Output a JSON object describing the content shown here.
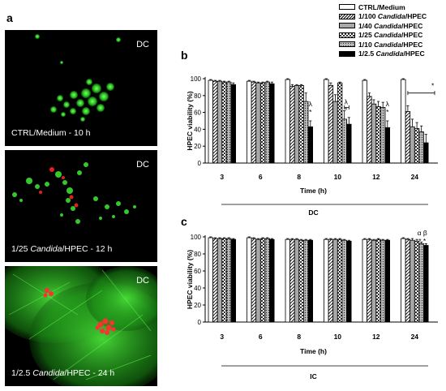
{
  "panels": {
    "a": "a",
    "b": "b",
    "c": "c"
  },
  "micrographs": [
    {
      "tag": "DC",
      "caption_pre": "CTRL/Medium - 10 h",
      "caption_italic": "",
      "caption_post": ""
    },
    {
      "tag": "DC",
      "caption_pre": "1/25 ",
      "caption_italic": "Candida",
      "caption_post": "/HPEC - 12 h"
    },
    {
      "tag": "DC",
      "caption_pre": "1/2.5 ",
      "caption_italic": "Candida",
      "caption_post": "/HPEC - 24 h"
    }
  ],
  "legend": [
    {
      "pre": "CTRL/Medium",
      "italic": "",
      "post": "",
      "pattern": "white"
    },
    {
      "pre": "1/100 ",
      "italic": "Candida",
      "post": "/HPEC",
      "pattern": "diag"
    },
    {
      "pre": "1/40 ",
      "italic": "Candida",
      "post": "/HPEC",
      "pattern": "gray"
    },
    {
      "pre": "1/25 ",
      "italic": "Candida",
      "post": "/HPEC",
      "pattern": "check"
    },
    {
      "pre": "1/10 ",
      "italic": "Candida",
      "post": "/HPEC",
      "pattern": "dots"
    },
    {
      "pre": "1/2.5 ",
      "italic": "Candida",
      "post": "/HPEC",
      "pattern": "black"
    }
  ],
  "chart_data": [
    {
      "type": "bar",
      "panel": "b",
      "ylabel": "HPEC viability (%)",
      "xlabel": "Time (h)",
      "group_label": "DC",
      "ylim": [
        0,
        100
      ],
      "yticks": [
        0,
        20,
        40,
        60,
        80,
        100
      ],
      "categories": [
        "3",
        "6",
        "8",
        "10",
        "12",
        "24"
      ],
      "series": [
        {
          "name": "CTRL/Medium",
          "values": [
            98,
            97,
            99,
            99,
            98,
            99
          ],
          "errors": [
            1,
            1,
            1,
            1,
            1,
            1
          ]
        },
        {
          "name": "1/100 Candida/HPEC",
          "values": [
            97,
            96,
            91,
            92,
            79,
            61
          ],
          "errors": [
            1,
            1,
            2,
            3,
            4,
            7
          ]
        },
        {
          "name": "1/40 Candida/HPEC",
          "values": [
            97,
            95,
            92,
            73,
            70,
            43
          ],
          "errors": [
            1,
            1,
            1,
            8,
            5,
            9
          ]
        },
        {
          "name": "1/25 Candida/HPEC",
          "values": [
            96,
            95,
            92,
            95,
            67,
            41
          ],
          "errors": [
            1,
            1,
            1,
            1,
            6,
            7
          ]
        },
        {
          "name": "1/10 Candida/HPEC",
          "values": [
            96,
            96,
            73,
            52,
            66,
            37
          ],
          "errors": [
            1,
            1,
            10,
            10,
            6,
            7
          ]
        },
        {
          "name": "1/2.5 Candida/HPEC",
          "values": [
            93,
            94,
            43,
            46,
            42,
            24
          ],
          "errors": [
            2,
            2,
            7,
            8,
            8,
            10
          ]
        }
      ],
      "annotations": [
        {
          "category": "8",
          "text": "λ"
        },
        {
          "category": "8",
          "text": "*"
        },
        {
          "category": "10",
          "text": "λ"
        },
        {
          "category": "10",
          "text": "*"
        },
        {
          "category": "12",
          "text": "λ"
        },
        {
          "category": "12",
          "text": "*"
        },
        {
          "category": "24",
          "text": "*"
        }
      ]
    },
    {
      "type": "bar",
      "panel": "c",
      "ylabel": "HPEC viability (%)",
      "xlabel": "Time (h)",
      "group_label": "IC",
      "ylim": [
        0,
        100
      ],
      "yticks": [
        0,
        20,
        40,
        60,
        80,
        100
      ],
      "categories": [
        "3",
        "6",
        "8",
        "10",
        "12",
        "24"
      ],
      "series": [
        {
          "name": "CTRL/Medium",
          "values": [
            99,
            99,
            97,
            97,
            97,
            98
          ],
          "errors": [
            1,
            1,
            1,
            1,
            1,
            1
          ]
        },
        {
          "name": "1/100 Candida/HPEC",
          "values": [
            98,
            98,
            97,
            97,
            97,
            97
          ],
          "errors": [
            1,
            1,
            1,
            1,
            1,
            1
          ]
        },
        {
          "name": "1/40 Candida/HPEC",
          "values": [
            98,
            97,
            97,
            97,
            96,
            96
          ],
          "errors": [
            1,
            1,
            1,
            1,
            1,
            2
          ]
        },
        {
          "name": "1/25 Candida/HPEC",
          "values": [
            98,
            98,
            96,
            97,
            97,
            95
          ],
          "errors": [
            1,
            1,
            1,
            1,
            1,
            2
          ]
        },
        {
          "name": "1/10 Candida/HPEC",
          "values": [
            98,
            98,
            96,
            96,
            96,
            92
          ],
          "errors": [
            1,
            1,
            1,
            1,
            1,
            2
          ]
        },
        {
          "name": "1/2.5 Candida/HPEC",
          "values": [
            97,
            97,
            96,
            95,
            96,
            90
          ],
          "errors": [
            1,
            1,
            1,
            1,
            1,
            2
          ]
        }
      ],
      "annotations": [
        {
          "category": "24",
          "text": "α β"
        },
        {
          "category": "24",
          "text": "* *"
        }
      ]
    }
  ]
}
